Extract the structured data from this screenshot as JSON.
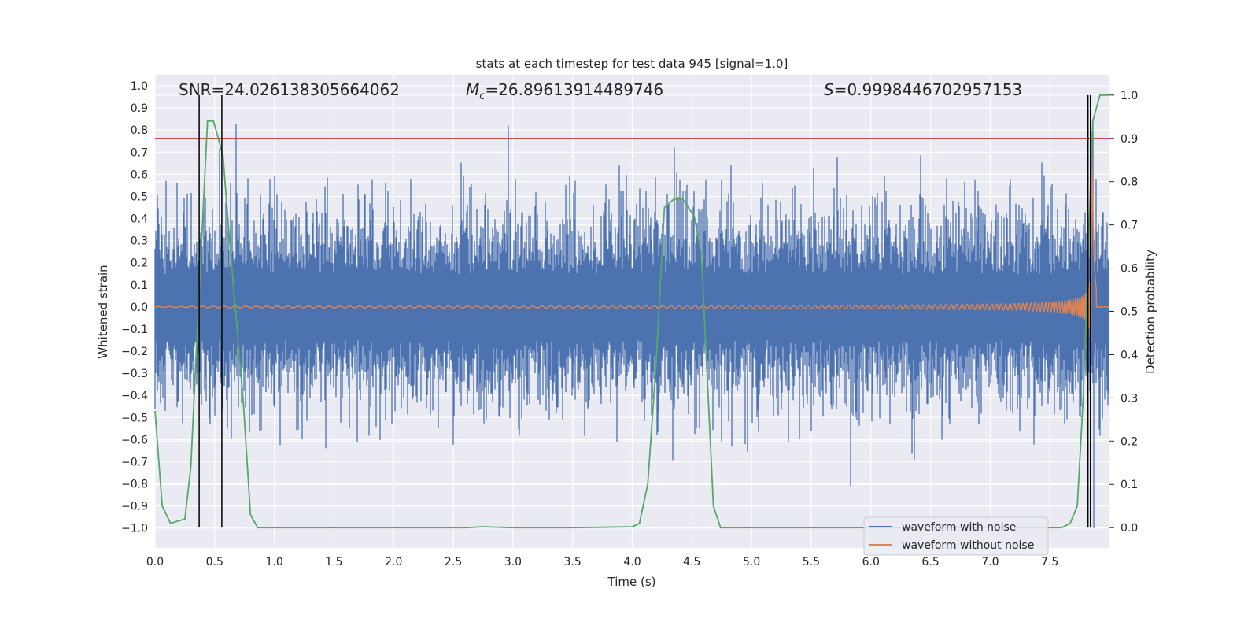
{
  "chart_data": {
    "type": "line",
    "title": "stats at each timestep for test data 945 [signal=1.0]",
    "xlabel": "Time (s)",
    "ylabel": "Whitened strain",
    "y2label": "Detection probability",
    "xlim": [
      0.0,
      8.0
    ],
    "ylim": [
      -1.09,
      1.05
    ],
    "y2lim": [
      -0.047,
      1.047
    ],
    "grid": true,
    "legend_position": "lower-right",
    "x_ticks": [
      "0.0",
      "0.5",
      "1.0",
      "1.5",
      "2.0",
      "2.5",
      "3.0",
      "3.5",
      "4.0",
      "4.5",
      "5.0",
      "5.5",
      "6.0",
      "6.5",
      "7.0",
      "7.5"
    ],
    "y_ticks": [
      "1.0",
      "0.9",
      "0.8",
      "0.7",
      "0.6",
      "0.5",
      "0.4",
      "0.3",
      "0.2",
      "0.1",
      "0.0",
      "−0.1",
      "−0.2",
      "−0.3",
      "−0.4",
      "−0.5",
      "−0.6",
      "−0.7",
      "−0.8",
      "−0.9",
      "−1.0"
    ],
    "y2_ticks": [
      "1.0",
      "0.9",
      "0.8",
      "0.7",
      "0.6",
      "0.5",
      "0.4",
      "0.3",
      "0.2",
      "0.1",
      "0.0"
    ],
    "annotations": {
      "snr": "SNR=24.026138305664062",
      "mc_symbol": "M",
      "mc_sub": "c",
      "mc_value": "=26.89613914489746",
      "s_symbol": "S",
      "s_value": "=0.9998446702957153"
    },
    "threshold_y2": 0.9,
    "vertical_markers": [
      0.37,
      0.56,
      7.82,
      7.84
    ],
    "series": [
      {
        "name": "waveform with noise",
        "color": "#4c72b0",
        "description_points": {
          "x_range": [
            0.0,
            8.0
          ],
          "amplitude_typical": 0.3,
          "peaks": [
            [
              2.96,
              0.82
            ],
            [
              5.83,
              -0.81
            ],
            [
              7.86,
              0.85
            ],
            [
              7.87,
              -1.0
            ]
          ]
        }
      },
      {
        "name": "waveform without noise",
        "color": "#dd8452",
        "chirp": {
          "start": 0.0,
          "merger": 7.85,
          "max_amplitude": 0.85
        }
      },
      {
        "name": "",
        "color": "#55a868",
        "axis": "y2",
        "x": [
          0.0,
          0.06,
          0.13,
          0.25,
          0.3,
          0.36,
          0.44,
          0.49,
          0.57,
          0.62,
          0.74,
          0.8,
          0.86,
          1.0,
          2.0,
          2.6,
          2.75,
          3.0,
          3.5,
          4.0,
          4.06,
          4.13,
          4.2,
          4.27,
          4.35,
          4.42,
          4.52,
          4.58,
          4.68,
          4.74,
          4.81,
          5.0,
          6.0,
          7.0,
          7.6,
          7.67,
          7.73,
          7.78,
          7.86,
          7.92,
          8.0
        ],
        "y": [
          0.27,
          0.05,
          0.01,
          0.02,
          0.14,
          0.49,
          0.94,
          0.94,
          0.86,
          0.68,
          0.29,
          0.03,
          0.0,
          0.0,
          0.0,
          0.0,
          0.002,
          0.0,
          0.0,
          0.002,
          0.01,
          0.1,
          0.38,
          0.74,
          0.76,
          0.76,
          0.72,
          0.63,
          0.05,
          0.0,
          0.0,
          0.0,
          0.0,
          0.0,
          0.0,
          0.01,
          0.05,
          0.3,
          0.94,
          1.0,
          1.0
        ]
      }
    ]
  },
  "legend": {
    "items": [
      {
        "label": "waveform with noise",
        "color": "#4c72b0"
      },
      {
        "label": "waveform without noise",
        "color": "#dd8452"
      }
    ]
  }
}
